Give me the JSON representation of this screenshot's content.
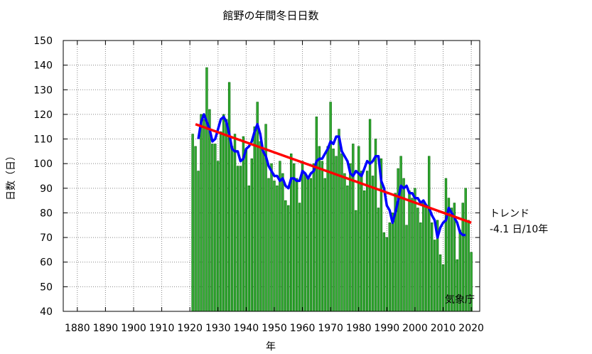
{
  "chart_data": {
    "type": "bar",
    "title": "館野の年間冬日日数",
    "xlabel": "年",
    "ylabel": "日数（日）",
    "ylim": [
      40,
      150
    ],
    "xlim": [
      1875,
      2023
    ],
    "x_ticks": [
      1880,
      1890,
      1900,
      1910,
      1920,
      1930,
      1940,
      1950,
      1960,
      1970,
      1980,
      1990,
      2000,
      2010,
      2020
    ],
    "y_ticks": [
      40,
      50,
      60,
      70,
      80,
      90,
      100,
      110,
      120,
      130,
      140,
      150
    ],
    "grid": true,
    "credit": "気象庁",
    "trend_label": "トレンド",
    "trend_value": "-4.1 日/10年",
    "trend_line": {
      "x": [
        1922,
        2020
      ],
      "y": [
        116,
        76
      ],
      "color": "#ff0000"
    },
    "colors": {
      "bar_fill": "#33aa33",
      "bar_edge": "#006600",
      "moving_avg": "#0000ff",
      "trend": "#ff0000"
    },
    "series": [
      {
        "type": "bar",
        "x": [
          1921,
          1922,
          1923,
          1924,
          1925,
          1926,
          1927,
          1928,
          1929,
          1930,
          1931,
          1932,
          1933,
          1934,
          1935,
          1936,
          1937,
          1938,
          1939,
          1940,
          1941,
          1942,
          1943,
          1944,
          1945,
          1946,
          1947,
          1948,
          1949,
          1950,
          1951,
          1952,
          1953,
          1954,
          1955,
          1956,
          1957,
          1958,
          1959,
          1960,
          1961,
          1962,
          1963,
          1964,
          1965,
          1966,
          1967,
          1968,
          1969,
          1970,
          1971,
          1972,
          1973,
          1974,
          1975,
          1976,
          1977,
          1978,
          1979,
          1980,
          1981,
          1982,
          1983,
          1984,
          1985,
          1986,
          1987,
          1988,
          1989,
          1990,
          1991,
          1992,
          1993,
          1994,
          1995,
          1996,
          1997,
          1998,
          1999,
          2000,
          2001,
          2002,
          2003,
          2004,
          2005,
          2006,
          2007,
          2008,
          2009,
          2010,
          2011,
          2012,
          2013,
          2014,
          2015,
          2016,
          2017,
          2018,
          2019,
          2020
        ],
        "values": [
          112,
          107,
          97,
          120,
          118,
          139,
          122,
          108,
          108,
          101,
          113,
          120,
          118,
          133,
          107,
          112,
          99,
          99,
          111,
          106,
          91,
          102,
          115,
          125,
          109,
          105,
          116,
          94,
          100,
          93,
          91,
          101,
          96,
          85,
          83,
          104,
          100,
          94,
          84,
          101,
          96,
          95,
          94,
          100,
          119,
          107,
          101,
          94,
          107,
          125,
          106,
          103,
          114,
          104,
          96,
          91,
          100,
          108,
          81,
          107,
          97,
          89,
          97,
          118,
          95,
          110,
          82,
          102,
          72,
          70,
          76,
          80,
          88,
          98,
          103,
          94,
          75,
          89,
          86,
          90,
          82,
          76,
          84,
          82,
          103,
          76,
          69,
          77,
          63,
          59,
          94,
          86,
          82,
          84,
          61,
          73,
          84,
          90,
          77,
          64
        ]
      },
      {
        "name": "",
        "type": "line",
        "x": [
          1923,
          1924,
          1925,
          1926,
          1927,
          1928,
          1929,
          1930,
          1931,
          1932,
          1933,
          1934,
          1935,
          1936,
          1937,
          1938,
          1939,
          1940,
          1941,
          1942,
          1943,
          1944,
          1945,
          1946,
          1947,
          1948,
          1949,
          1950,
          1951,
          1952,
          1953,
          1954,
          1955,
          1956,
          1957,
          1958,
          1959,
          1960,
          1961,
          1962,
          1963,
          1964,
          1965,
          1966,
          1967,
          1968,
          1969,
          1970,
          1971,
          1972,
          1973,
          1974,
          1975,
          1976,
          1977,
          1978,
          1979,
          1980,
          1981,
          1982,
          1983,
          1984,
          1985,
          1986,
          1987,
          1988,
          1989,
          1990,
          1991,
          1992,
          1993,
          1994,
          1995,
          1996,
          1997,
          1998,
          1999,
          2000,
          2001,
          2002,
          2003,
          2004,
          2005,
          2006,
          2007,
          2008,
          2009,
          2010,
          2011,
          2012,
          2013,
          2014,
          2015,
          2016,
          2017,
          2018
        ],
        "values": [
          110,
          117,
          120,
          117,
          114,
          109,
          110,
          114,
          118,
          119,
          117,
          112,
          106,
          105,
          105,
          101,
          102,
          106,
          107,
          109,
          113,
          116,
          112,
          105,
          103,
          99,
          97,
          95,
          95,
          93,
          94,
          91,
          90,
          94,
          94,
          93,
          93,
          97,
          96,
          94,
          96,
          97,
          101,
          102,
          102,
          104,
          106,
          109,
          108,
          111,
          111,
          105,
          103,
          101,
          96,
          95,
          97,
          96,
          95,
          98,
          101,
          100,
          101,
          103,
          103,
          93,
          90,
          83,
          81,
          76,
          80,
          85,
          91,
          90,
          91,
          88,
          88,
          86,
          86,
          84,
          85,
          83,
          82,
          79,
          77,
          70,
          74,
          76,
          77,
          82,
          80,
          78,
          76,
          72,
          71,
          71
        ]
      }
    ]
  }
}
